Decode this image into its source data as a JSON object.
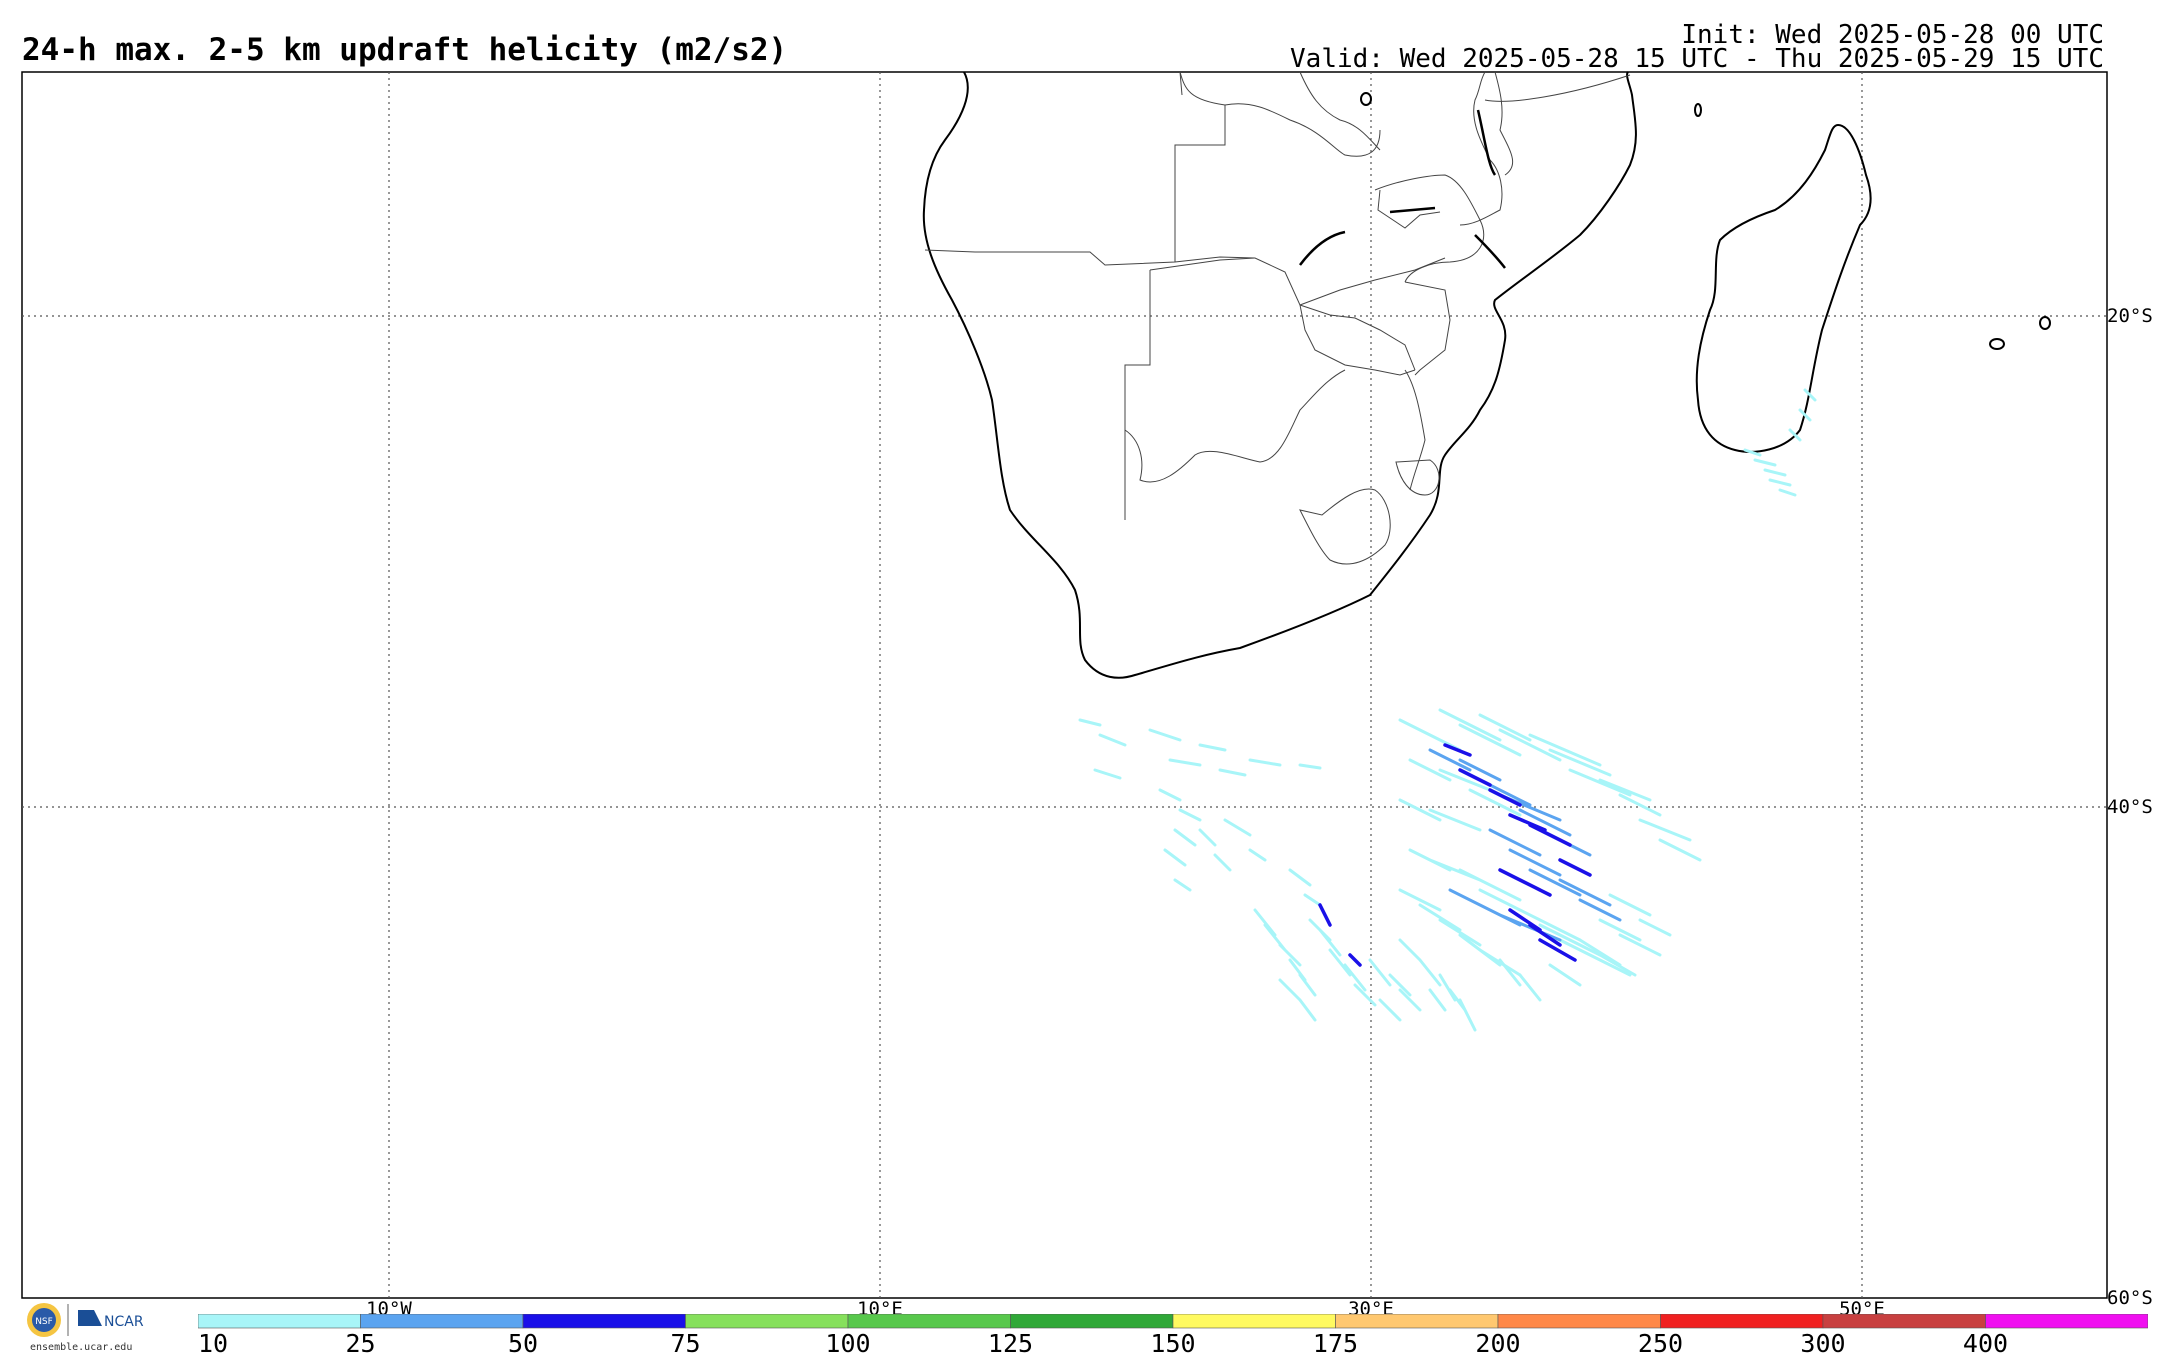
{
  "header": {
    "title": "24-h max. 2-5 km updraft helicity (m2/s2)",
    "init": "Init: Wed 2025-05-28 00 UTC",
    "valid": "Valid: Wed 2025-05-28 15 UTC - Thu 2025-05-29 15 UTC"
  },
  "map": {
    "lon_labels": [
      "10°W",
      "10°E",
      "30°E",
      "50°E"
    ],
    "lat_labels": [
      "20°S",
      "40°S",
      "60°S"
    ],
    "grid": "dotted",
    "region": "Southern Africa and South Atlantic / Indian Ocean"
  },
  "colorbar": {
    "labels": [
      "10",
      "25",
      "50",
      "75",
      "100",
      "125",
      "150",
      "175",
      "200",
      "250",
      "300",
      "400"
    ],
    "colors": [
      "#a8f5f8",
      "#5ba4f0",
      "#1a10e8",
      "#86e05c",
      "#58c84c",
      "#30a838",
      "#fffa60",
      "#ffc870",
      "#ff8848",
      "#f02020",
      "#c84040",
      "#f010f0"
    ]
  },
  "logo": {
    "org1": "NSF",
    "org2": "NCAR",
    "url": "ensemble.ucar.edu"
  }
}
